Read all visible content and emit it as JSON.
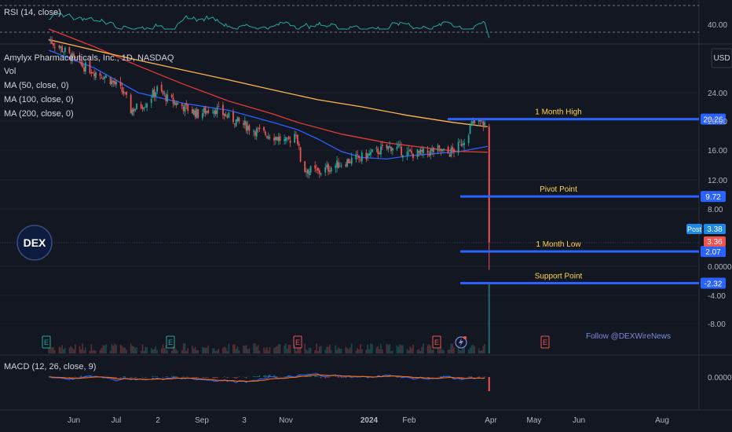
{
  "indicators": {
    "rsi_label": "RSI (14, close)",
    "rsi_level": "40.00",
    "title": "Amylyx Pharmaceuticals, Inc., 1D, NASDAQ",
    "vol": "Vol",
    "ma50": "MA (50, close, 0)",
    "ma100": "MA (100, close, 0)",
    "ma200": "MA (200, close, 0)",
    "macd_label": "MACD (12, 26, close, 9)",
    "macd_zero": "0.0000"
  },
  "currency": "USD",
  "follow": "Follow @DEXWireNews",
  "logo": "DEX",
  "colors": {
    "background": "#131722",
    "up": "#26a69a",
    "down": "#ef5350",
    "ma50": "#2962ff",
    "ma100": "#e53935",
    "ma200": "#ffb74d",
    "levels": "#2962ff",
    "level_label": "#ffd54f"
  },
  "levels": [
    {
      "label": "1 Month High",
      "value": 20.26,
      "tag": "20.26"
    },
    {
      "label": "Pivot Point",
      "value": 9.72,
      "tag": "9.72"
    },
    {
      "label": "1 Month Low",
      "value": 2.07,
      "tag": "2.07"
    },
    {
      "label": "Support Point",
      "value": -2.32,
      "tag": "-2.32"
    }
  ],
  "price_tags": {
    "post_label": "Post",
    "post_value": "3.38",
    "last_value": "3.36"
  },
  "earnings_icon": "E",
  "flash_icon": "lightning-icon",
  "chart_data": {
    "type": "candlestick",
    "y_ticks": [
      "24.00",
      "20.00",
      "16.00",
      "12.00",
      "8.00",
      "0.0000",
      "-4.00",
      "-8.00"
    ],
    "x_ticks": [
      "Jun",
      "Jul",
      "2",
      "Sep",
      "3",
      "Nov",
      "2024",
      "Feb",
      "Apr",
      "May",
      "Jun",
      "Aug"
    ],
    "price_path": [
      [
        "2023-05-15",
        31.5
      ],
      [
        "2023-05-25",
        30.0
      ],
      [
        "2023-06-05",
        28.0
      ],
      [
        "2023-06-15",
        27.0
      ],
      [
        "2023-06-25",
        26.0
      ],
      [
        "2023-07-05",
        24.0
      ],
      [
        "2023-07-10",
        21.5
      ],
      [
        "2023-07-20",
        22.5
      ],
      [
        "2023-07-28",
        24.5
      ],
      [
        "2023-08-05",
        23.0
      ],
      [
        "2023-08-15",
        22.0
      ],
      [
        "2023-08-25",
        21.0
      ],
      [
        "2023-09-05",
        21.8
      ],
      [
        "2023-09-15",
        20.5
      ],
      [
        "2023-09-25",
        19.5
      ],
      [
        "2023-10-05",
        18.5
      ],
      [
        "2023-10-15",
        18.0
      ],
      [
        "2023-10-25",
        17.0
      ],
      [
        "2023-10-31",
        18.5
      ],
      [
        "2023-11-04",
        13.5
      ],
      [
        "2023-11-15",
        13.0
      ],
      [
        "2023-11-25",
        13.8
      ],
      [
        "2023-12-05",
        14.5
      ],
      [
        "2023-12-15",
        15.0
      ],
      [
        "2023-12-25",
        15.8
      ],
      [
        "2024-01-05",
        16.5
      ],
      [
        "2024-01-15",
        15.5
      ],
      [
        "2024-01-25",
        15.5
      ],
      [
        "2024-02-05",
        16.0
      ],
      [
        "2024-02-12",
        15.5
      ],
      [
        "2024-02-19",
        16.5
      ],
      [
        "2024-02-23",
        17.5
      ],
      [
        "2024-02-28",
        19.5
      ],
      [
        "2024-03-04",
        19.8
      ],
      [
        "2024-03-09",
        19.6
      ],
      [
        "2024-03-11",
        3.36
      ]
    ],
    "ma_series": [
      {
        "name": "MA (50, close, 0)",
        "points": [
          [
            "2023-05-15",
            30.0
          ],
          [
            "2023-06-15",
            27.5
          ],
          [
            "2023-07-15",
            24.0
          ],
          [
            "2023-08-15",
            22.5
          ],
          [
            "2023-09-15",
            21.5
          ],
          [
            "2023-10-15",
            19.8
          ],
          [
            "2023-11-01",
            18.8
          ],
          [
            "2023-11-15",
            17.5
          ],
          [
            "2023-12-01",
            15.8
          ],
          [
            "2023-12-15",
            15.0
          ],
          [
            "2024-01-01",
            14.8
          ],
          [
            "2024-01-15",
            15.2
          ],
          [
            "2024-02-01",
            15.5
          ],
          [
            "2024-02-20",
            15.8
          ],
          [
            "2024-03-10",
            16.5
          ]
        ]
      },
      {
        "name": "MA (100, close, 0)",
        "points": [
          [
            "2023-05-15",
            33.0
          ],
          [
            "2023-06-15",
            30.5
          ],
          [
            "2023-07-15",
            27.8
          ],
          [
            "2023-08-15",
            25.2
          ],
          [
            "2023-09-15",
            22.8
          ],
          [
            "2023-10-15",
            21.0
          ],
          [
            "2023-11-01",
            19.8
          ],
          [
            "2023-12-01",
            18.2
          ],
          [
            "2024-01-01",
            17.0
          ],
          [
            "2024-02-01",
            16.2
          ],
          [
            "2024-02-20",
            15.8
          ],
          [
            "2024-03-10",
            15.7
          ]
        ]
      },
      {
        "name": "MA (200, close, 0)",
        "points": [
          [
            "2023-05-15",
            31.5
          ],
          [
            "2023-06-15",
            30.0
          ],
          [
            "2023-07-15",
            28.6
          ],
          [
            "2023-08-15",
            27.2
          ],
          [
            "2023-09-15",
            25.8
          ],
          [
            "2023-10-15",
            24.4
          ],
          [
            "2023-11-15",
            23.0
          ],
          [
            "2023-12-15",
            22.0
          ],
          [
            "2024-01-15",
            20.8
          ],
          [
            "2024-02-15",
            19.8
          ],
          [
            "2024-03-10",
            19.2
          ]
        ]
      }
    ],
    "earnings_dates": [
      "2023-05-12",
      "2023-08-10",
      "2023-11-09",
      "2024-02-22",
      "2024-05-09"
    ]
  }
}
